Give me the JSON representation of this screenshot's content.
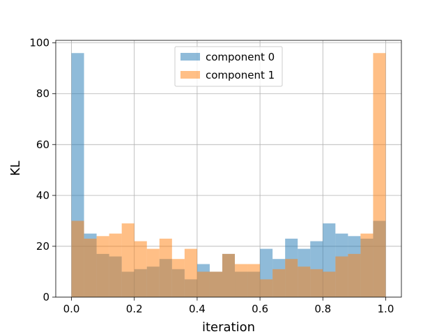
{
  "chart_data": {
    "type": "bar",
    "subtype": "overlapping-histogram",
    "title": "",
    "xlabel": "iteration",
    "ylabel": "KL",
    "xlim": [
      -0.05,
      1.05
    ],
    "ylim": [
      0,
      101
    ],
    "xticks": [
      0.0,
      0.2,
      0.4,
      0.6,
      0.8,
      1.0
    ],
    "xtick_labels": [
      "0.0",
      "0.2",
      "0.4",
      "0.6",
      "0.8",
      "1.0"
    ],
    "yticks": [
      0,
      20,
      40,
      60,
      80,
      100
    ],
    "ytick_labels": [
      "0",
      "20",
      "40",
      "60",
      "80",
      "100"
    ],
    "grid": true,
    "legend_position": "top-center",
    "bin_edges": [
      0.0,
      0.04,
      0.08,
      0.12,
      0.16,
      0.2,
      0.24,
      0.28,
      0.32,
      0.36,
      0.4,
      0.44,
      0.48,
      0.52,
      0.56,
      0.6,
      0.64,
      0.68,
      0.72,
      0.76,
      0.8,
      0.84,
      0.88,
      0.92,
      0.96,
      1.0
    ],
    "series": [
      {
        "name": "component 0",
        "color": "#1f77b4",
        "alpha": 0.5,
        "values": [
          96,
          25,
          17,
          16,
          10,
          11,
          12,
          15,
          11,
          7,
          13,
          10,
          17,
          10,
          10,
          19,
          15,
          23,
          19,
          22,
          29,
          25,
          24,
          23,
          30
        ]
      },
      {
        "name": "component 1",
        "color": "#ff7f0e",
        "alpha": 0.5,
        "values": [
          30,
          23,
          24,
          25,
          29,
          22,
          19,
          23,
          15,
          19,
          10,
          10,
          17,
          13,
          13,
          7,
          11,
          15,
          12,
          11,
          10,
          16,
          17,
          25,
          96
        ]
      }
    ]
  }
}
